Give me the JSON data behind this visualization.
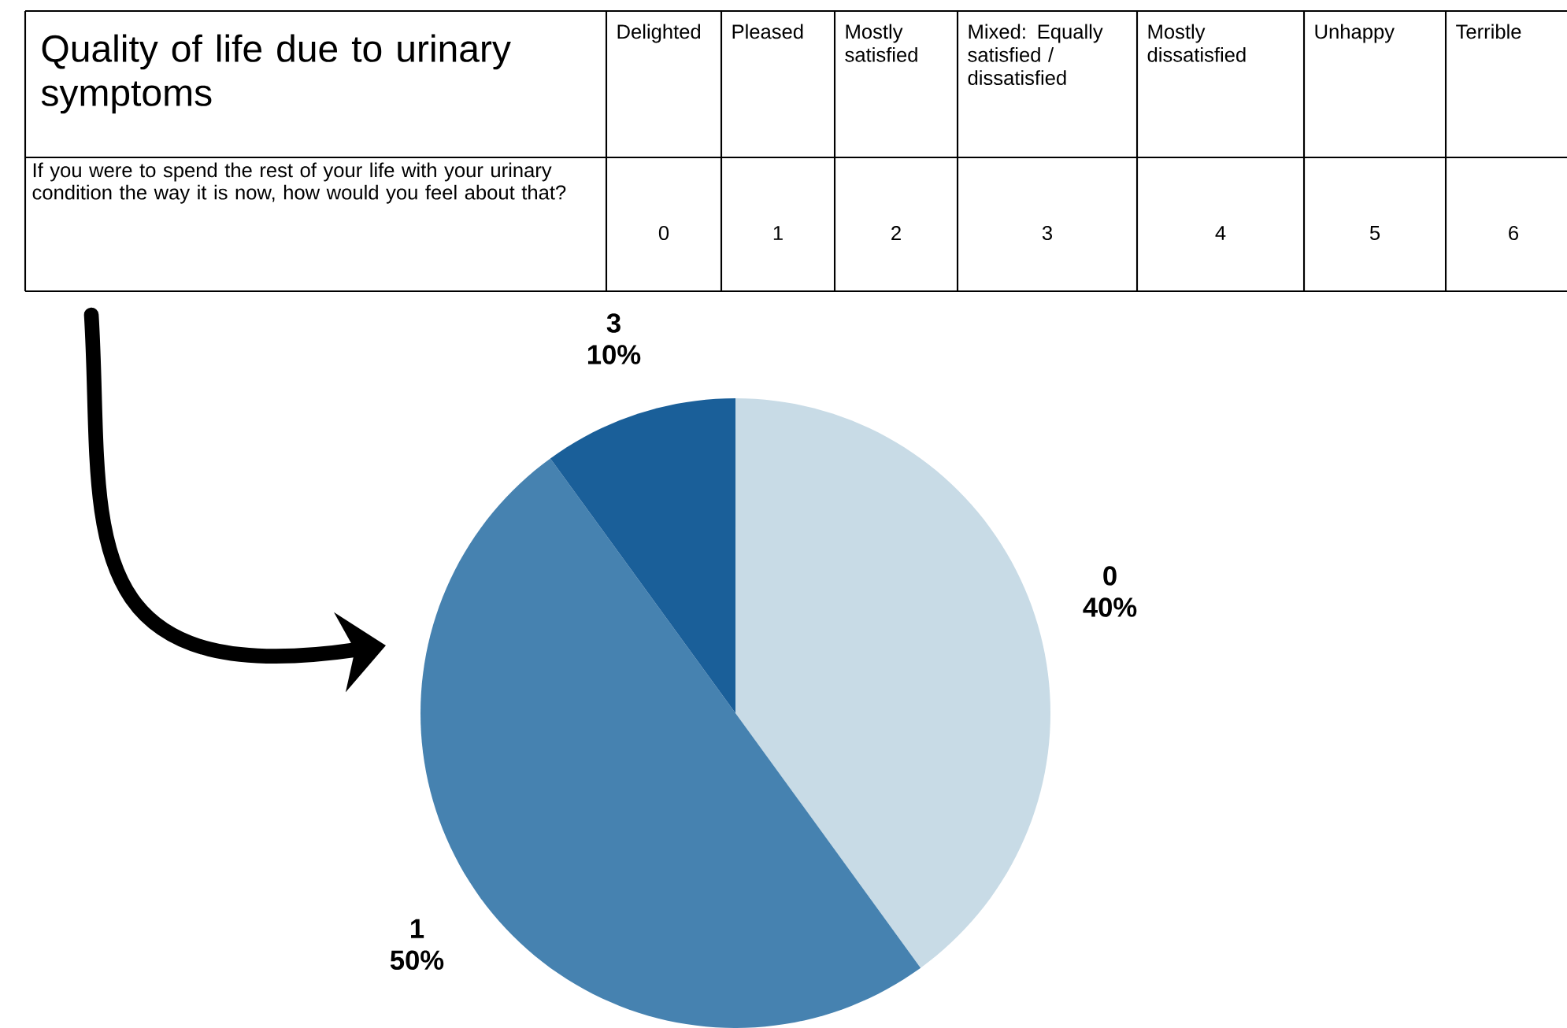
{
  "chart_data": [
    {
      "type": "other",
      "title": "Quality of life due to urinary symptoms",
      "categories": [
        "Delighted",
        "Pleased",
        "Mostly satisfied",
        "Mixed: Equally satisfied / dissatisfied",
        "Mostly dissatisfied",
        "Unhappy",
        "Terrible"
      ],
      "values": [
        0,
        1,
        2,
        3,
        4,
        5,
        6
      ],
      "data_labels": true,
      "annotations": [
        "If you were to spend the rest of your life with your urinary condition the way it is now, how would you feel about that?"
      ]
    },
    {
      "type": "pie",
      "categories": [
        "0",
        "1",
        "3"
      ],
      "values": [
        40,
        50,
        10
      ],
      "colors": [
        "#c8dbe6",
        "#4682b0",
        "#1a5f99"
      ],
      "value_labels": [
        "40%",
        "50%",
        "10%"
      ]
    }
  ]
}
